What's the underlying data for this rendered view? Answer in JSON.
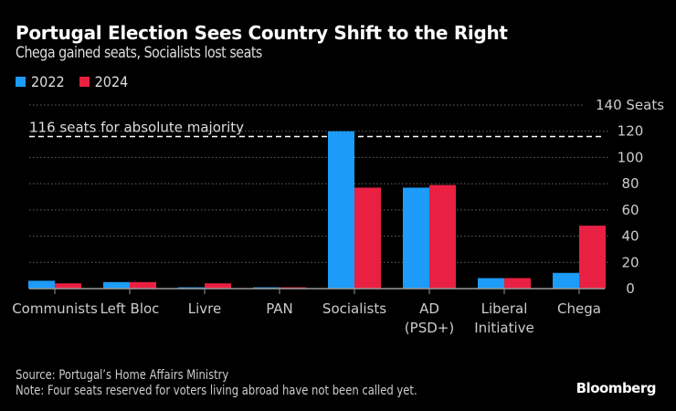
{
  "title": "Portugal Election Sees Country Shift to the Right",
  "subtitle": "Chega gained seats, Socialists lost seats",
  "source": "Source: Portugal’s Home Affairs Ministry",
  "note": "Note: Four seats reserved for voters living abroad have not been called yet.",
  "brand": "Bloomberg",
  "colors": {
    "s2022": "#1d9bf8",
    "s2024": "#ea2042",
    "grid": "#666666",
    "baseline": "#999999"
  },
  "chart_data": {
    "type": "bar",
    "title": "Portugal Election Sees Country Shift to the Right",
    "subtitle": "Chega gained seats, Socialists lost seats",
    "categories": [
      [
        "Communists"
      ],
      [
        "Left Bloc"
      ],
      [
        "Livre"
      ],
      [
        "PAN"
      ],
      [
        "Socialists"
      ],
      [
        "AD",
        "(PSD+)"
      ],
      [
        "Liberal",
        "Initiative"
      ],
      [
        "Chega"
      ]
    ],
    "series": [
      {
        "name": "2022",
        "values": [
          6,
          5,
          1,
          1,
          120,
          77,
          8,
          12
        ]
      },
      {
        "name": "2024",
        "values": [
          4,
          5,
          4,
          1,
          77,
          79,
          8,
          48
        ]
      }
    ],
    "ylabel": "Seats",
    "yticks": [
      0,
      20,
      40,
      60,
      80,
      100,
      120,
      140
    ],
    "ytick_top_label": "140 Seats",
    "ylim": [
      0,
      140
    ],
    "y_axis_position": "right",
    "grid": true,
    "legend": "top-left",
    "annotation": {
      "value": 116,
      "label": "116 seats for absolute majority"
    }
  }
}
